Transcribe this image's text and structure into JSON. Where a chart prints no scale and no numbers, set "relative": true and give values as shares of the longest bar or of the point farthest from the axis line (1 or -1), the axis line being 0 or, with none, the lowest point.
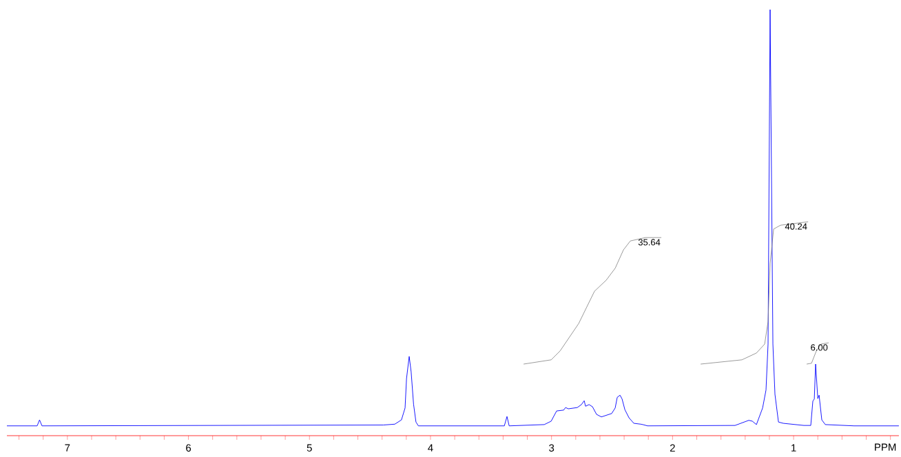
{
  "chart_data": {
    "type": "line",
    "relative": true,
    "xlabel": "PPM",
    "xlim": [
      7.5,
      0.13
    ],
    "xticks": [
      {
        "value": 7.4,
        "label": null
      },
      {
        "value": 7.2,
        "label": null
      },
      7,
      {
        "value": 6.8,
        "label": null
      },
      {
        "value": 6.6,
        "label": null
      },
      {
        "value": 6.4,
        "label": null
      },
      {
        "value": 6.2,
        "label": null
      },
      6,
      {
        "value": 5.8,
        "label": null
      },
      {
        "value": 5.6,
        "label": null
      },
      {
        "value": 5.4,
        "label": null
      },
      {
        "value": 5.2,
        "label": null
      },
      5,
      {
        "value": 4.8,
        "label": null
      },
      {
        "value": 4.6,
        "label": null
      },
      {
        "value": 4.4,
        "label": null
      },
      {
        "value": 4.2,
        "label": null
      },
      4,
      {
        "value": 3.8,
        "label": null
      },
      {
        "value": 3.6,
        "label": null
      },
      {
        "value": 3.4,
        "label": null
      },
      {
        "value": 3.2,
        "label": null
      },
      3,
      {
        "value": 2.8,
        "label": null
      },
      {
        "value": 2.6,
        "label": null
      },
      {
        "value": 2.4,
        "label": null
      },
      {
        "value": 2.2,
        "label": null
      },
      2,
      {
        "value": 1.8,
        "label": null
      },
      {
        "value": 1.6,
        "label": null
      },
      {
        "value": 1.4,
        "label": null
      },
      {
        "value": 1.2,
        "label": null
      },
      1,
      {
        "value": 0.8,
        "label": null
      },
      {
        "value": 0.6,
        "label": null
      },
      {
        "value": 0.4,
        "label": null
      },
      {
        "value": 0.2,
        "label": null
      }
    ],
    "marker": "none",
    "series": [
      {
        "color": "#0000ff",
        "x": [
          7.5,
          7.25,
          7.23,
          7.21,
          4.39,
          4.295,
          4.24,
          4.21,
          4.198,
          4.176,
          4.16,
          4.14,
          4.12,
          4.1,
          3.39,
          3.368,
          3.35,
          3.06,
          3.003,
          2.958,
          2.9,
          2.884,
          2.861,
          2.787,
          2.753,
          2.73,
          2.719,
          2.69,
          2.662,
          2.628,
          2.588,
          2.503,
          2.474,
          2.457,
          2.434,
          2.417,
          2.394,
          2.36,
          2.32,
          2.263,
          2.246,
          2.207,
          1.484,
          1.37,
          1.341,
          1.307,
          1.256,
          1.228,
          1.211,
          1.194,
          1.171,
          1.154,
          1.125,
          1.085,
          0.915,
          0.858,
          0.841,
          0.829,
          0.818,
          0.807,
          0.8,
          0.789,
          0.784,
          0.767,
          0.738,
          0.5,
          0.13
        ],
        "values": [
          0.023,
          0.023,
          0.037,
          0.023,
          0.025,
          0.027,
          0.037,
          0.065,
          0.134,
          0.186,
          0.15,
          0.074,
          0.032,
          0.023,
          0.023,
          0.045,
          0.023,
          0.026,
          0.034,
          0.058,
          0.06,
          0.066,
          0.063,
          0.066,
          0.073,
          0.082,
          0.069,
          0.073,
          0.068,
          0.05,
          0.044,
          0.052,
          0.065,
          0.09,
          0.095,
          0.086,
          0.061,
          0.042,
          0.029,
          0.027,
          0.026,
          0.023,
          0.024,
          0.036,
          0.034,
          0.026,
          0.065,
          0.107,
          0.215,
          1.0,
          0.215,
          0.097,
          0.032,
          0.029,
          0.024,
          0.024,
          0.081,
          0.086,
          0.168,
          0.118,
          0.087,
          0.095,
          0.081,
          0.037,
          0.026,
          0.023,
          0.023
        ]
      },
      {
        "color": "#808080",
        "x": [
          3.231,
          3.003,
          2.929,
          2.776,
          2.645,
          2.548,
          2.474,
          2.406,
          2.349,
          2.224,
          2.093
        ],
        "values": [
          0.168,
          0.178,
          0.199,
          0.263,
          0.339,
          0.365,
          0.393,
          0.436,
          0.457,
          0.465,
          0.465
        ]
      },
      {
        "color": "#808080",
        "x": [
          1.768,
          1.427,
          1.307,
          1.239,
          1.211,
          1.194,
          1.165,
          1.108,
          0.88
        ],
        "values": [
          0.168,
          0.178,
          0.194,
          0.215,
          0.268,
          0.404,
          0.485,
          0.494,
          0.502
        ]
      },
      {
        "color": "#808080",
        "x": [
          0.892,
          0.852,
          0.812,
          0.772,
          0.71
        ],
        "values": [
          0.168,
          0.17,
          0.199,
          0.215,
          0.218
        ]
      }
    ],
    "annotations": [
      "35.64",
      "40.24",
      "6.00"
    ]
  }
}
